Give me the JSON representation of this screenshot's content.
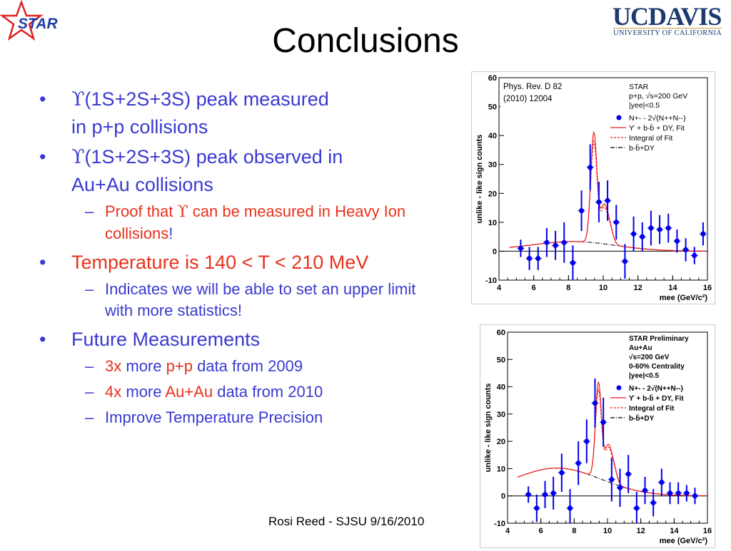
{
  "header": {
    "star_logo_text": "STAR",
    "ucd_logo_main_uc": "UC",
    "ucd_logo_main_davis": "DAVIS",
    "ucd_logo_sub": "UNIVERSITY OF CALIFORNIA",
    "title": "Conclusions"
  },
  "bullets": {
    "b1_symbol": "ϒ",
    "b1_text": "(1S+2S+3S) peak measured",
    "b1_line2": "in p+p collisions",
    "b2_symbol": "ϒ",
    "b2_text": "(1S+2S+3S) peak observed in",
    "b2_line2": "Au+Au collisions",
    "b2_sub_a": "Proof that",
    "b2_sub_symbol": "ϒ",
    "b2_sub_b": "can be measured in Heavy",
    "b2_sub_c": "Ion collisions",
    "b2_sub_d": "!",
    "b3_text": "Temperature is 140 < T < 210 MeV",
    "b3_sub": "Indicates we will be able to set an upper limit with more statistics!",
    "b4_text": "Future Measurements",
    "b4_sub1_a": "3x",
    "b4_sub1_b": "more",
    "b4_sub1_c": "p+p",
    "b4_sub1_d": "data from 2009",
    "b4_sub2_a": "4x",
    "b4_sub2_b": "more",
    "b4_sub2_c": "Au+Au",
    "b4_sub2_d": "data from 2010",
    "b4_sub3": "Improve Temperature Precision"
  },
  "footer": "Rosi Reed - SJSU 9/16/2010",
  "colors": {
    "bullet_blue": "#3a3ad0",
    "highlight_red": "#e8321e",
    "ucd_navy": "#1c3a6e",
    "ucd_gold": "#c8a23c",
    "star_red": "#e02020",
    "star_blue": "#1f3fa8"
  },
  "chart_data": [
    {
      "type": "scatter",
      "annotation": "Phys. Rev. D 82 (2010) 12004",
      "info_lines": [
        "STAR",
        "p+p, √s=200 GeV",
        "|yee|<0.5"
      ],
      "legend": [
        {
          "label": "N+- - 2√(N++N--)",
          "style": "points",
          "color": "#0000ee"
        },
        {
          "label": "ϒ + b-b̄ + DY, Fit",
          "style": "solid",
          "color": "#ee2020"
        },
        {
          "label": "Integral of Fit",
          "style": "dashed",
          "color": "#ee2020"
        },
        {
          "label": "b-b̄+DY",
          "style": "dashdot",
          "color": "#000000"
        }
      ],
      "xlabel": "mee (GeV/c²)",
      "ylabel": "unlike - like sign counts",
      "xlim": [
        4,
        16
      ],
      "ylim": [
        -10,
        60
      ],
      "xticks": [
        "4",
        "6",
        "8",
        "10",
        "12",
        "14",
        "16"
      ],
      "yticks": [
        "-10",
        "0",
        "10",
        "20",
        "30",
        "40",
        "50",
        "60"
      ],
      "points": [
        {
          "x": 5.25,
          "y": 1,
          "err": 3
        },
        {
          "x": 5.75,
          "y": -2.5,
          "err": 4
        },
        {
          "x": 6.25,
          "y": -2.5,
          "err": 4
        },
        {
          "x": 6.75,
          "y": 3,
          "err": 5
        },
        {
          "x": 7.25,
          "y": 2,
          "err": 5
        },
        {
          "x": 7.75,
          "y": 3,
          "err": 7
        },
        {
          "x": 8.25,
          "y": -4,
          "err": 6
        },
        {
          "x": 8.75,
          "y": 14,
          "err": 7
        },
        {
          "x": 9.25,
          "y": 29,
          "err": 8
        },
        {
          "x": 9.75,
          "y": 17,
          "err": 7
        },
        {
          "x": 10.25,
          "y": 17.5,
          "err": 7
        },
        {
          "x": 10.75,
          "y": 10,
          "err": 6
        },
        {
          "x": 11.25,
          "y": -3.5,
          "err": 6
        },
        {
          "x": 11.75,
          "y": 6,
          "err": 6
        },
        {
          "x": 12.25,
          "y": 5,
          "err": 5
        },
        {
          "x": 12.75,
          "y": 8,
          "err": 6
        },
        {
          "x": 13.25,
          "y": 7.5,
          "err": 5
        },
        {
          "x": 13.75,
          "y": 8,
          "err": 5
        },
        {
          "x": 14.25,
          "y": 3.5,
          "err": 4
        },
        {
          "x": 14.75,
          "y": 0.5,
          "err": 4
        },
        {
          "x": 15.25,
          "y": -1.5,
          "err": 3
        },
        {
          "x": 15.75,
          "y": 6,
          "err": 4
        }
      ]
    },
    {
      "type": "scatter",
      "info_lines": [
        "STAR Preliminary",
        "Au+Au",
        "√s=200 GeV",
        "0-60% Centrality",
        "|yee|<0.5"
      ],
      "legend": [
        {
          "label": "N+- - 2√(N++N--)",
          "style": "points",
          "color": "#0000ee"
        },
        {
          "label": "ϒ + b-b̄ + DY, Fit",
          "style": "solid",
          "color": "#ee2020"
        },
        {
          "label": "Integral of Fit",
          "style": "dashed",
          "color": "#ee2020"
        },
        {
          "label": "b-b̄+DY",
          "style": "dashdot",
          "color": "#000000"
        }
      ],
      "xlabel": "mee (GeV/c²)",
      "ylabel": "unlike - like sign counts",
      "xlim": [
        4,
        16
      ],
      "ylim": [
        -10,
        60
      ],
      "xticks": [
        "4",
        "6",
        "8",
        "10",
        "12",
        "14",
        "16"
      ],
      "yticks": [
        "-10",
        "0",
        "10",
        "20",
        "30",
        "40",
        "50",
        "60"
      ],
      "points": [
        {
          "x": 5.25,
          "y": 0.5,
          "err": 3
        },
        {
          "x": 5.75,
          "y": -4.5,
          "err": 5
        },
        {
          "x": 6.25,
          "y": 0.5,
          "err": 5
        },
        {
          "x": 6.75,
          "y": 1,
          "err": 6
        },
        {
          "x": 7.25,
          "y": 8.5,
          "err": 7
        },
        {
          "x": 7.75,
          "y": -4.5,
          "err": 7
        },
        {
          "x": 8.25,
          "y": 12,
          "err": 8
        },
        {
          "x": 8.75,
          "y": 20,
          "err": 8
        },
        {
          "x": 9.25,
          "y": 34,
          "err": 9
        },
        {
          "x": 9.75,
          "y": 27,
          "err": 9
        },
        {
          "x": 10.25,
          "y": 6,
          "err": 8
        },
        {
          "x": 10.75,
          "y": 3,
          "err": 7
        },
        {
          "x": 11.25,
          "y": 8,
          "err": 7
        },
        {
          "x": 11.75,
          "y": -4.5,
          "err": 6
        },
        {
          "x": 12.25,
          "y": 2,
          "err": 5
        },
        {
          "x": 12.75,
          "y": -2.5,
          "err": 5
        },
        {
          "x": 13.25,
          "y": 5,
          "err": 5
        },
        {
          "x": 13.75,
          "y": 1,
          "err": 4
        },
        {
          "x": 14.25,
          "y": 1,
          "err": 4
        },
        {
          "x": 14.75,
          "y": 1,
          "err": 3
        },
        {
          "x": 15.25,
          "y": 0,
          "err": 3
        }
      ]
    }
  ]
}
